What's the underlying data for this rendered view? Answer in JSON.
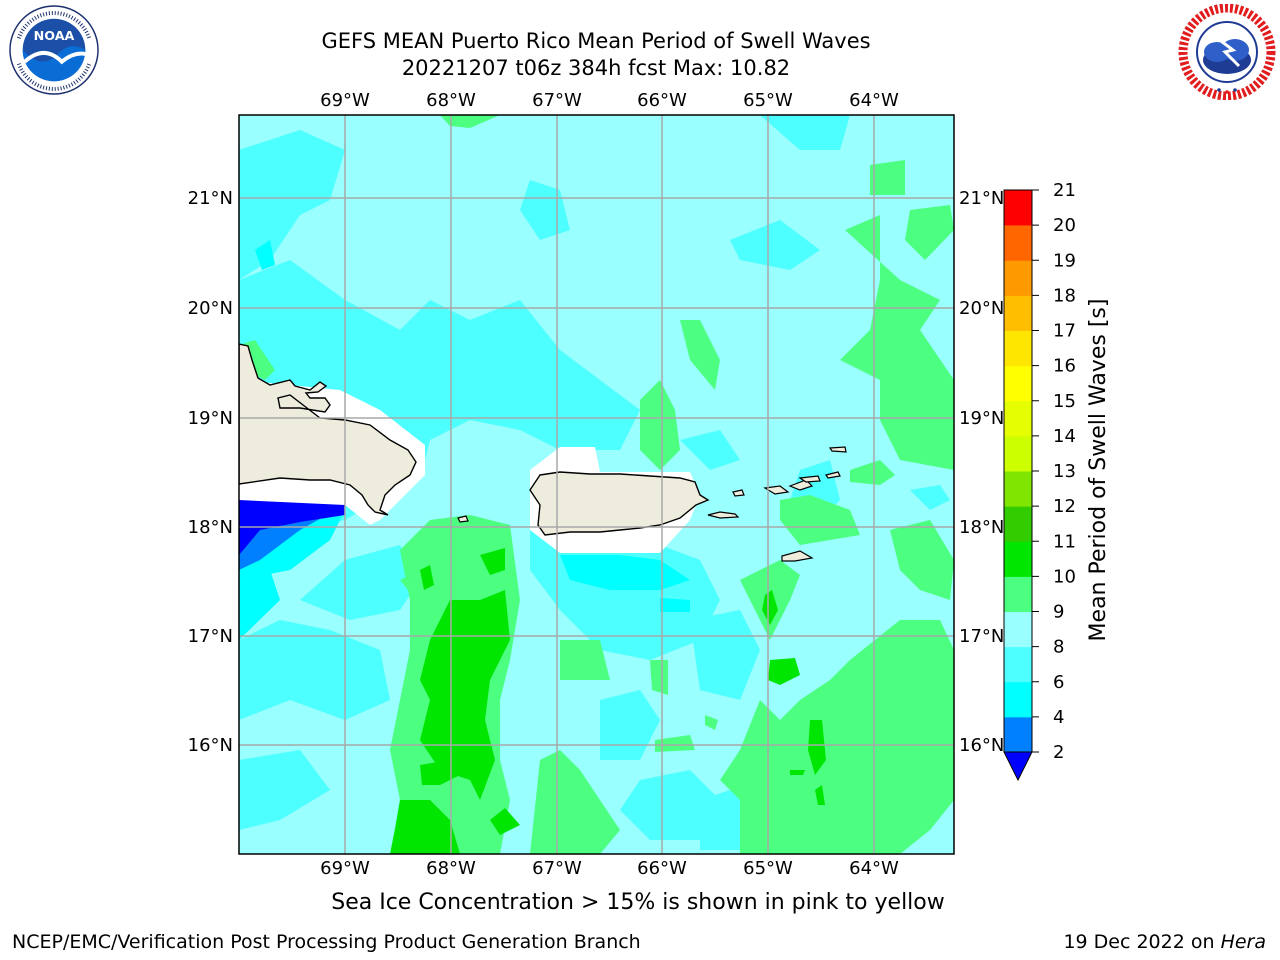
{
  "header": {
    "title_line1": "GEFS MEAN Puerto Rico Mean Period of Swell Waves",
    "title_line2": "20221207 t06z 384h fcst   Max: 10.82"
  },
  "logos": {
    "left": {
      "icon": "noaa-logo",
      "text": "NOAA",
      "ring_text": "NATIONAL OCEANIC AND ATMOSPHERIC ADMINISTRATION · U.S. DEPARTMENT OF COMMERCE"
    },
    "right": {
      "icon": "nws-logo",
      "ring_text": "NATIONAL WEATHER SERVICE"
    }
  },
  "map": {
    "lon_labels": [
      "69°W",
      "68°W",
      "67°W",
      "66°W",
      "65°W",
      "64°W"
    ],
    "lat_labels": [
      "21°N",
      "20°N",
      "19°N",
      "18°N",
      "17°N",
      "16°N"
    ],
    "colors": {
      "land": "#eeecdc",
      "ocean_base": "#99ffff",
      "land_mask": "#ffffff"
    }
  },
  "colorbar": {
    "label": "Mean Period of Swell Waves [s]",
    "ticks": [
      "2",
      "4",
      "6",
      "8",
      "9",
      "10",
      "11",
      "12",
      "13",
      "14",
      "15",
      "16",
      "17",
      "18",
      "19",
      "20",
      "21"
    ],
    "colors": [
      "#0080ff",
      "#00ffff",
      "#4dffff",
      "#99ffff",
      "#4dff80",
      "#00e600",
      "#33cc00",
      "#80e600",
      "#ccff00",
      "#e6ff00",
      "#ffff00",
      "#ffe600",
      "#ffbf00",
      "#ff9900",
      "#ff6600",
      "#ff3300",
      "#ff0000"
    ],
    "under_color": "#0000ff"
  },
  "note": "Sea Ice Concentration > 15% is shown in pink to yellow",
  "footer": {
    "left": "NCEP/EMC/Verification Post Processing Product Generation Branch",
    "date": "19 Dec 2022 on ",
    "machine": "Hera"
  }
}
